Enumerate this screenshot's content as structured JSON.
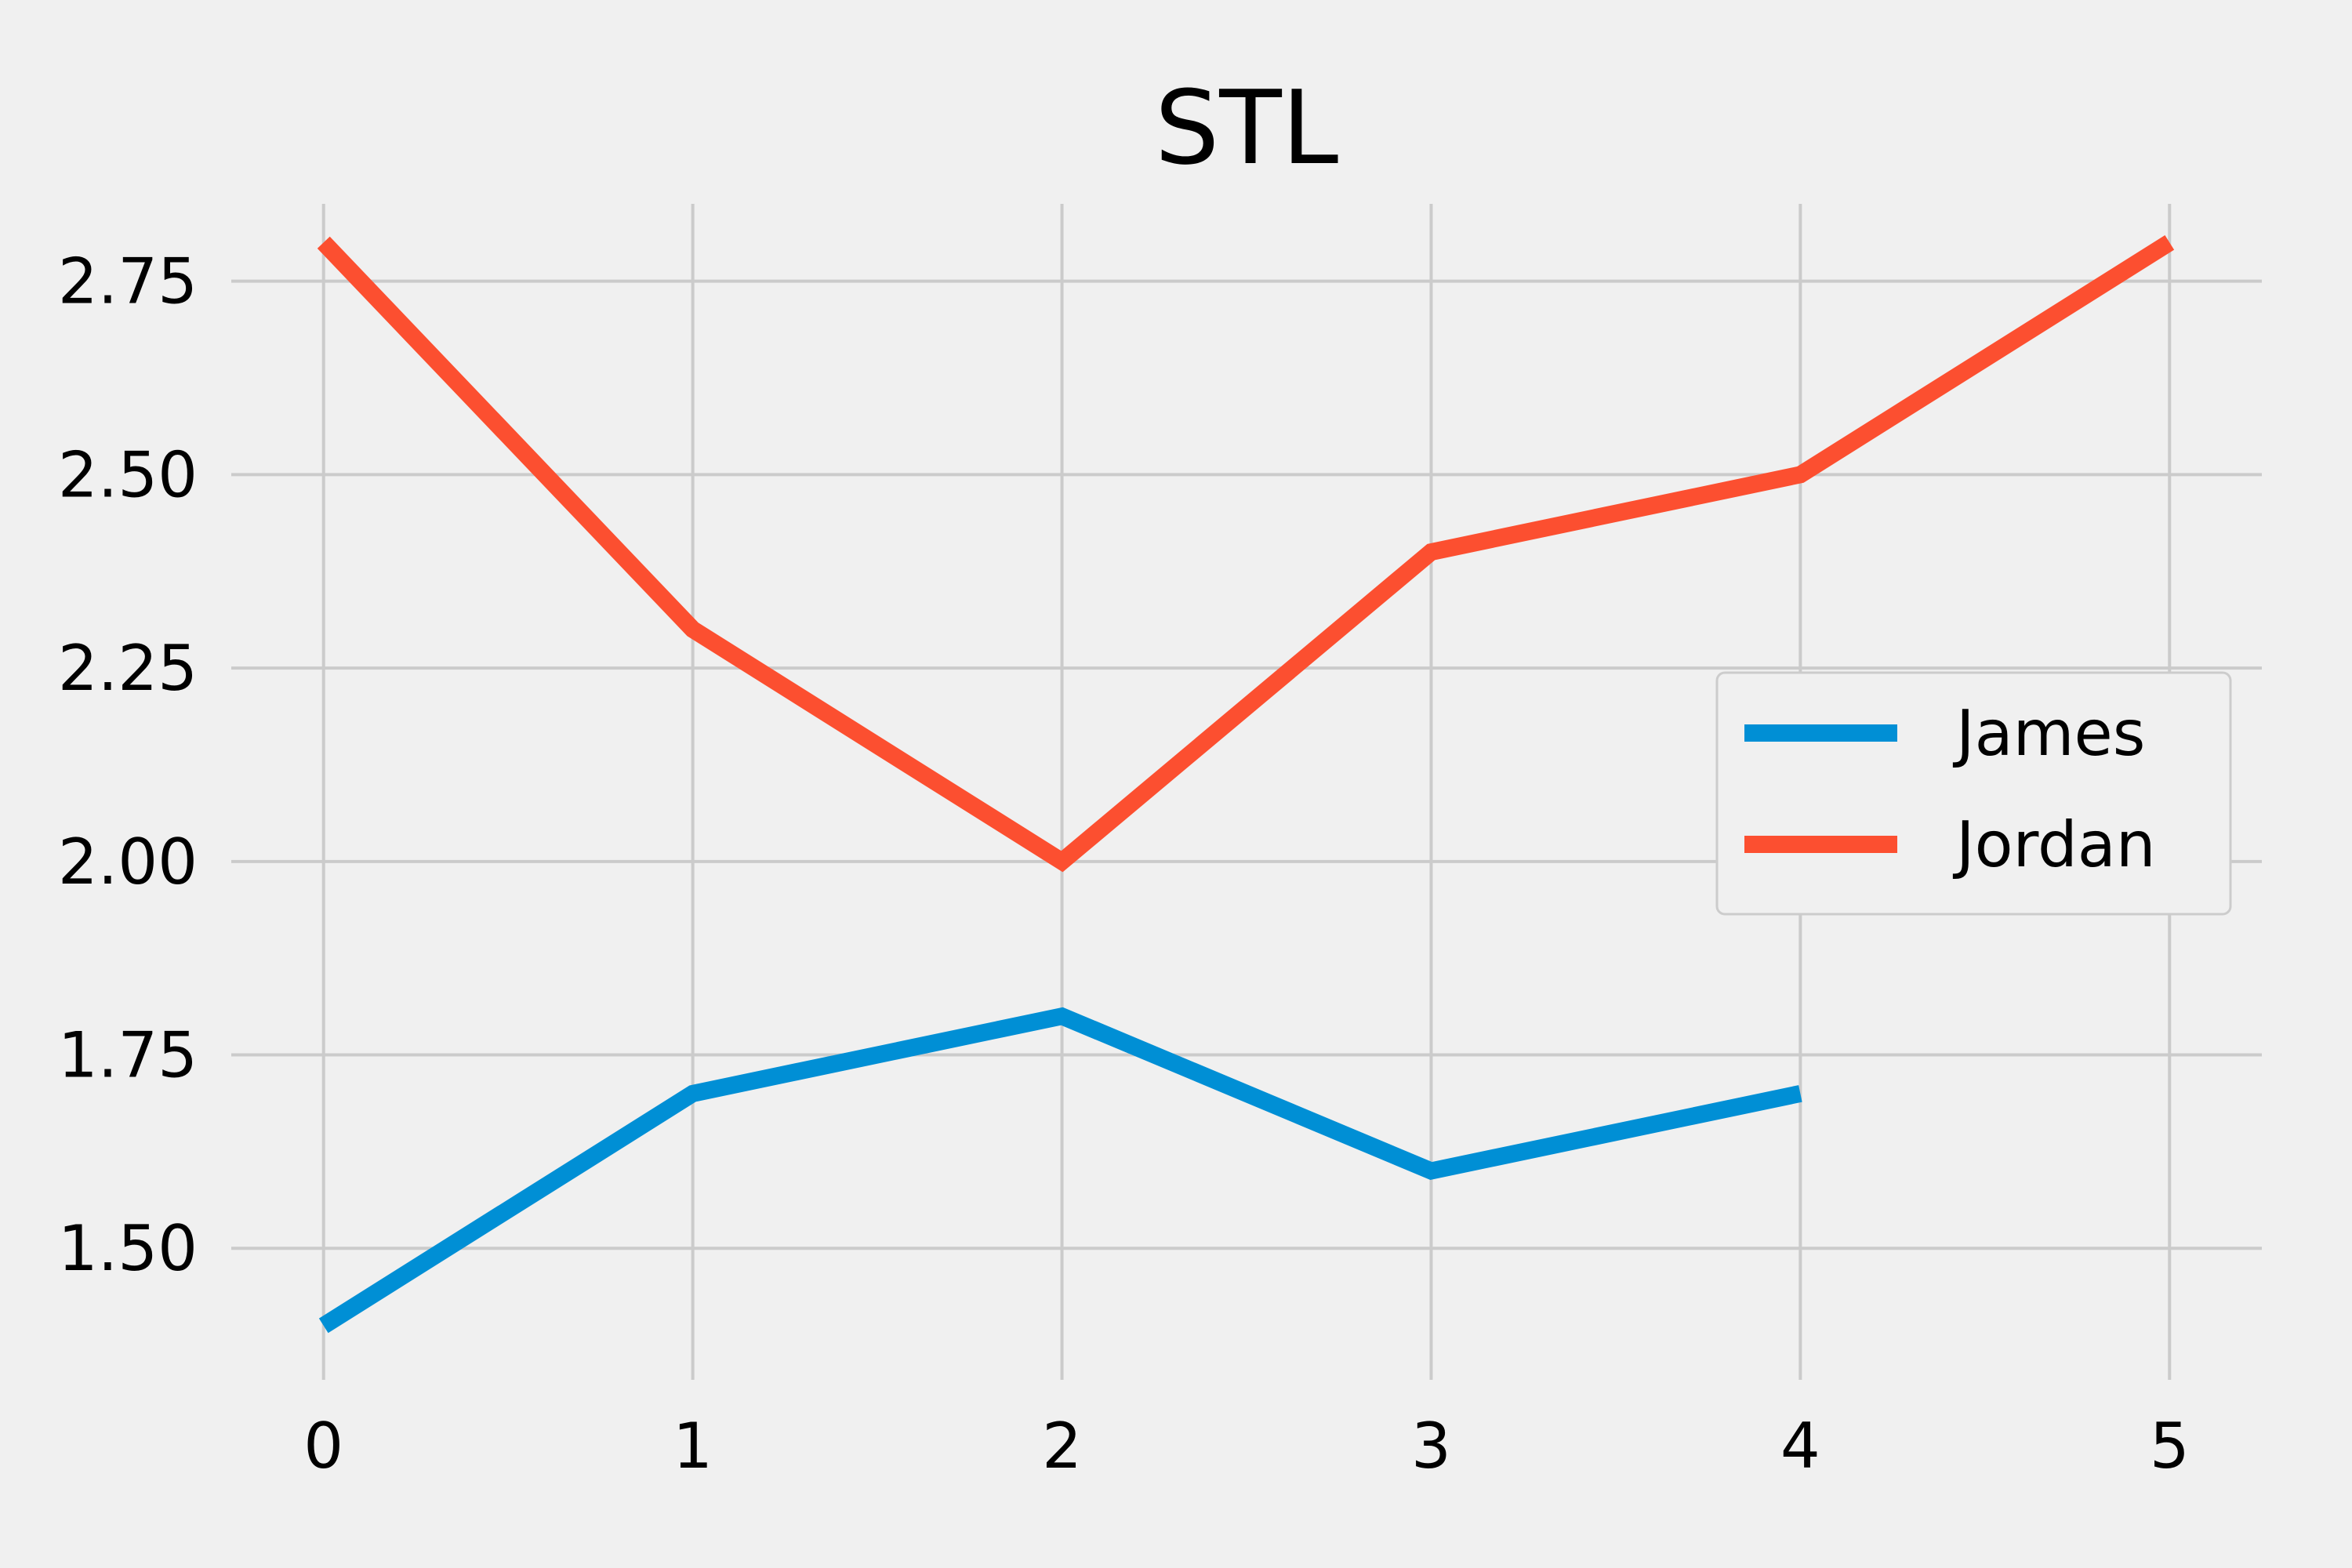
{
  "chart_data": {
    "type": "line",
    "title": "STL",
    "xlabel": "",
    "ylabel": "",
    "x": [
      0,
      1,
      2,
      3,
      4,
      5
    ],
    "x_ticks": [
      "0",
      "1",
      "2",
      "3",
      "4",
      "5"
    ],
    "y_ticks": [
      "1.50",
      "1.75",
      "2.00",
      "2.25",
      "2.50",
      "2.75"
    ],
    "xlim": [
      -0.25,
      5.25
    ],
    "ylim": [
      1.33,
      2.85
    ],
    "grid": true,
    "legend_position": "center-right",
    "series": [
      {
        "name": "James",
        "color": "#008fd5",
        "x": [
          0,
          1,
          2,
          3,
          4
        ],
        "values": [
          1.4,
          1.7,
          1.8,
          1.6,
          1.7
        ]
      },
      {
        "name": "Jordan",
        "color": "#fc4f30",
        "x": [
          0,
          1,
          2,
          3,
          4,
          5
        ],
        "values": [
          2.8,
          2.3,
          2.0,
          2.4,
          2.5,
          2.8
        ]
      }
    ]
  }
}
